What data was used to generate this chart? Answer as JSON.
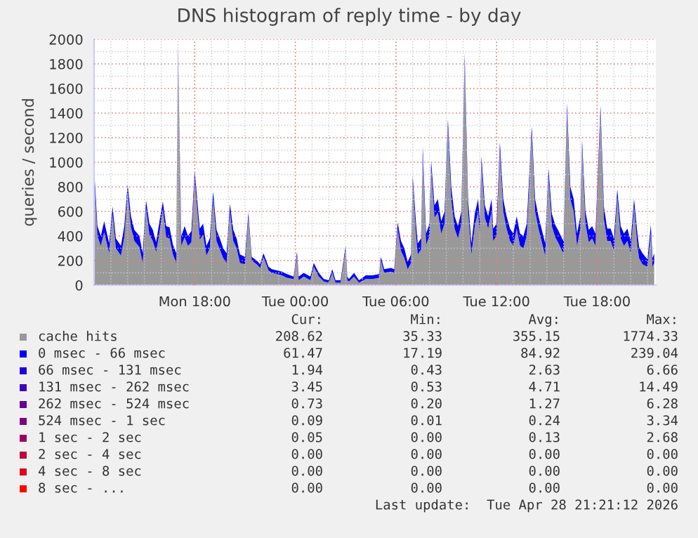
{
  "chart_data": {
    "type": "area",
    "stacked": true,
    "title": "DNS histogram of reply time - by day",
    "ylabel": "queries / second",
    "x": [
      "2026-04-27T12:00",
      "2026-04-27T12:12",
      "2026-04-27T12:24",
      "2026-04-27T12:36",
      "2026-04-27T12:54",
      "2026-04-27T13:06",
      "2026-04-27T13:18",
      "2026-04-27T13:36",
      "2026-04-27T13:48",
      "2026-04-27T14:00",
      "2026-04-27T14:12",
      "2026-04-27T14:24",
      "2026-04-27T14:42",
      "2026-04-27T14:54",
      "2026-04-27T15:06",
      "2026-04-27T15:18",
      "2026-04-27T15:30",
      "2026-04-27T15:42",
      "2026-04-27T15:54",
      "2026-04-27T16:06",
      "2026-04-27T16:18",
      "2026-04-27T16:30",
      "2026-04-27T16:42",
      "2026-04-27T16:54",
      "2026-04-27T17:00",
      "2026-04-27T17:12",
      "2026-04-27T17:24",
      "2026-04-27T17:36",
      "2026-04-27T17:48",
      "2026-04-27T18:00",
      "2026-04-27T18:18",
      "2026-04-27T18:30",
      "2026-04-27T18:42",
      "2026-04-27T18:54",
      "2026-04-27T19:06",
      "2026-04-27T19:18",
      "2026-04-27T19:30",
      "2026-04-27T19:42",
      "2026-04-27T19:54",
      "2026-04-27T20:06",
      "2026-04-27T20:18",
      "2026-04-27T20:30",
      "2026-04-27T20:42",
      "2026-04-27T21:00",
      "2026-04-27T21:12",
      "2026-04-27T21:24",
      "2026-04-27T21:42",
      "2026-04-27T21:54",
      "2026-04-27T22:06",
      "2026-04-27T22:24",
      "2026-04-27T22:36",
      "2026-04-27T22:54",
      "2026-04-27T23:12",
      "2026-04-27T23:30",
      "2026-04-27T23:54",
      "2026-04-28T00:06",
      "2026-04-28T00:12",
      "2026-04-28T00:30",
      "2026-04-28T00:54",
      "2026-04-28T01:06",
      "2026-04-28T01:24",
      "2026-04-28T01:42",
      "2026-04-28T02:00",
      "2026-04-28T02:12",
      "2026-04-28T02:24",
      "2026-04-28T02:42",
      "2026-04-28T03:00",
      "2026-04-28T03:06",
      "2026-04-28T03:12",
      "2026-04-28T03:30",
      "2026-04-28T03:48",
      "2026-04-28T04:12",
      "2026-04-28T04:36",
      "2026-04-28T05:00",
      "2026-04-28T05:06",
      "2026-04-28T05:18",
      "2026-04-28T05:42",
      "2026-04-28T05:54",
      "2026-04-28T06:06",
      "2026-04-28T06:18",
      "2026-04-28T06:30",
      "2026-04-28T06:42",
      "2026-04-28T06:54",
      "2026-04-28T07:00",
      "2026-04-28T07:12",
      "2026-04-28T07:18",
      "2026-04-28T07:30",
      "2026-04-28T07:36",
      "2026-04-28T07:48",
      "2026-04-28T08:00",
      "2026-04-28T08:06",
      "2026-04-28T08:18",
      "2026-04-28T08:30",
      "2026-04-28T08:42",
      "2026-04-28T08:54",
      "2026-04-28T09:06",
      "2026-04-28T09:18",
      "2026-04-28T09:30",
      "2026-04-28T09:42",
      "2026-04-28T09:54",
      "2026-04-28T10:06",
      "2026-04-28T10:18",
      "2026-04-28T10:30",
      "2026-04-28T10:42",
      "2026-04-28T10:54",
      "2026-04-28T11:00",
      "2026-04-28T11:06",
      "2026-04-28T11:18",
      "2026-04-28T11:30",
      "2026-04-28T11:42",
      "2026-04-28T11:48",
      "2026-04-28T12:00",
      "2026-04-28T12:12",
      "2026-04-28T12:24",
      "2026-04-28T12:36",
      "2026-04-28T12:48",
      "2026-04-28T13:00",
      "2026-04-28T13:12",
      "2026-04-28T13:24",
      "2026-04-28T13:36",
      "2026-04-28T13:48",
      "2026-04-28T14:06",
      "2026-04-28T14:18",
      "2026-04-28T14:30",
      "2026-04-28T14:42",
      "2026-04-28T14:54",
      "2026-04-28T15:06",
      "2026-04-28T15:18",
      "2026-04-28T15:30",
      "2026-04-28T15:42",
      "2026-04-28T15:54",
      "2026-04-28T16:00",
      "2026-04-28T16:12",
      "2026-04-28T16:24",
      "2026-04-28T16:36",
      "2026-04-28T16:48",
      "2026-04-28T17:00",
      "2026-04-28T17:06",
      "2026-04-28T17:18",
      "2026-04-28T17:30",
      "2026-04-28T17:42",
      "2026-04-28T17:54",
      "2026-04-28T18:12",
      "2026-04-28T18:24",
      "2026-04-28T18:36",
      "2026-04-28T18:48",
      "2026-04-28T19:00",
      "2026-04-28T19:12",
      "2026-04-28T19:24",
      "2026-04-28T19:36",
      "2026-04-28T19:48",
      "2026-04-28T20:00",
      "2026-04-28T20:12",
      "2026-04-28T20:24",
      "2026-04-28T20:30",
      "2026-04-28T20:42",
      "2026-04-28T21:00",
      "2026-04-28T21:12",
      "2026-04-28T21:18",
      "2026-04-28T21:24"
    ],
    "series": [
      {
        "name": "cache hits",
        "color": "#999999",
        "values": [
          890,
          400,
          320,
          430,
          260,
          580,
          300,
          240,
          390,
          760,
          470,
          360,
          310,
          180,
          630,
          410,
          360,
          270,
          430,
          620,
          390,
          380,
          250,
          180,
          1880,
          320,
          390,
          320,
          350,
          870,
          370,
          410,
          240,
          300,
          700,
          360,
          290,
          220,
          180,
          600,
          360,
          300,
          180,
          170,
          550,
          200,
          170,
          140,
          230,
          120,
          100,
          90,
          80,
          60,
          50,
          240,
          40,
          70,
          40,
          150,
          70,
          30,
          20,
          100,
          20,
          20,
          290,
          40,
          30,
          70,
          20,
          50,
          50,
          60,
          200,
          100,
          110,
          100,
          460,
          280,
          220,
          130,
          180,
          830,
          410,
          250,
          290,
          1060,
          330,
          400,
          950,
          550,
          590,
          420,
          500,
          1290,
          700,
          460,
          380,
          500,
          1820,
          600,
          250,
          480,
          600,
          420,
          990,
          550,
          460,
          600,
          360,
          400,
          1100,
          600,
          460,
          360,
          320,
          460,
          320,
          300,
          400,
          1230,
          600,
          460,
          350,
          240,
          890,
          480,
          390,
          340,
          280,
          260,
          1420,
          700,
          600,
          320,
          460,
          1120,
          500,
          350,
          380,
          320,
          1400,
          540,
          360,
          360,
          280,
          720,
          380,
          320,
          360,
          260,
          640,
          320,
          220,
          170,
          150,
          420,
          150,
          180
        ]
      },
      {
        "name": "0 msec - 66 msec",
        "color": "#0000ff",
        "values": [
          60,
          80,
          80,
          90,
          80,
          60,
          80,
          80,
          90,
          60,
          90,
          90,
          90,
          80,
          60,
          90,
          90,
          80,
          90,
          60,
          90,
          90,
          80,
          80,
          60,
          80,
          90,
          80,
          90,
          60,
          90,
          90,
          80,
          80,
          60,
          90,
          90,
          80,
          80,
          60,
          90,
          80,
          70,
          60,
          40,
          30,
          30,
          30,
          30,
          30,
          30,
          30,
          30,
          30,
          20,
          30,
          30,
          30,
          30,
          30,
          30,
          20,
          20,
          30,
          20,
          20,
          30,
          30,
          20,
          30,
          20,
          30,
          30,
          30,
          30,
          30,
          30,
          30,
          50,
          80,
          80,
          60,
          70,
          60,
          90,
          90,
          90,
          60,
          90,
          100,
          60,
          100,
          110,
          100,
          100,
          60,
          100,
          100,
          100,
          100,
          60,
          100,
          90,
          100,
          100,
          100,
          60,
          100,
          100,
          100,
          100,
          100,
          60,
          100,
          100,
          100,
          100,
          100,
          100,
          100,
          100,
          60,
          100,
          100,
          100,
          100,
          60,
          100,
          100,
          100,
          100,
          100,
          60,
          100,
          100,
          100,
          100,
          60,
          100,
          100,
          100,
          100,
          60,
          100,
          100,
          100,
          100,
          60,
          100,
          100,
          100,
          100,
          60,
          100,
          90,
          90,
          60,
          70,
          70,
          80
        ]
      },
      {
        "name": "66 msec - 131 msec",
        "color": "#2000e0",
        "values": [
          null,
          null,
          null,
          null,
          null,
          null,
          null,
          null,
          null,
          null,
          null,
          null,
          null,
          null,
          null,
          null,
          null,
          null,
          null,
          null,
          null,
          null,
          null,
          null,
          null,
          null,
          null,
          null,
          null,
          null,
          null,
          null,
          null,
          null,
          null,
          null,
          null,
          null,
          null,
          null,
          null,
          null,
          null,
          null,
          null,
          null,
          null,
          null,
          null,
          null,
          null,
          null,
          null,
          null,
          null,
          null,
          null,
          null,
          null,
          null,
          null,
          null,
          null,
          null,
          null,
          null,
          null,
          null,
          null,
          null,
          null,
          null,
          null,
          null,
          null,
          null,
          null,
          null,
          null,
          null,
          null,
          null,
          null,
          null,
          null,
          null,
          null,
          null,
          null,
          null,
          null,
          null,
          null,
          null,
          null,
          null,
          null,
          null,
          null,
          null,
          null,
          null,
          null,
          null,
          null,
          null,
          null,
          null,
          null,
          null,
          null,
          null,
          null,
          null,
          null,
          null,
          null,
          null,
          null,
          null,
          null,
          null,
          null,
          null,
          null,
          null,
          null,
          null,
          null,
          null,
          null,
          null,
          null,
          null,
          null,
          null,
          null,
          null,
          null,
          null,
          null,
          null,
          null,
          null,
          null,
          null,
          null,
          null,
          null,
          null,
          null,
          null,
          null,
          null,
          null,
          null,
          null,
          null,
          null,
          null
        ]
      },
      {
        "name": "131 msec - 262 msec",
        "color": "#4000c0",
        "values": [
          null,
          null,
          null,
          null,
          null,
          null,
          null,
          null,
          null,
          null,
          null,
          null,
          null,
          null,
          null,
          null,
          null,
          null,
          null,
          null,
          null,
          null,
          null,
          null,
          null,
          null,
          null,
          null,
          null,
          null,
          null,
          null,
          null,
          null,
          null,
          null,
          null,
          null,
          null,
          null,
          null,
          null,
          null,
          null,
          null,
          null,
          null,
          null,
          null,
          null,
          null,
          null,
          null,
          null,
          null,
          null,
          null,
          null,
          null,
          null,
          null,
          null,
          null,
          null,
          null,
          null,
          null,
          null,
          null,
          null,
          null,
          null,
          null,
          null,
          null,
          null,
          null,
          null,
          null,
          null,
          null,
          null,
          null,
          null,
          null,
          null,
          null,
          null,
          null,
          null,
          null,
          null,
          null,
          null,
          null,
          null,
          null,
          null,
          null,
          null,
          null,
          null,
          null,
          null,
          null,
          null,
          null,
          null,
          null,
          null,
          null,
          null,
          null,
          null,
          null,
          null,
          null,
          null,
          null,
          null,
          null,
          null,
          null,
          null,
          null,
          null,
          null,
          null,
          null,
          null,
          null,
          null,
          null,
          null,
          null,
          null,
          null,
          null,
          null,
          null,
          null,
          null,
          null,
          null,
          null,
          null,
          null,
          null,
          null,
          null,
          null,
          null,
          null,
          null,
          null,
          null,
          null,
          null,
          null,
          null
        ]
      },
      {
        "name": "262 msec - 524 msec",
        "color": "#6000a0",
        "values": [
          null,
          null,
          null,
          null,
          null,
          null,
          null,
          null,
          null,
          null,
          null,
          null,
          null,
          null,
          null,
          null,
          null,
          null,
          null,
          null,
          null,
          null,
          null,
          null,
          null,
          null,
          null,
          null,
          null,
          null,
          null,
          null,
          null,
          null,
          null,
          null,
          null,
          null,
          null,
          null,
          null,
          null,
          null,
          null,
          null,
          null,
          null,
          null,
          null,
          null,
          null,
          null,
          null,
          null,
          null,
          null,
          null,
          null,
          null,
          null,
          null,
          null,
          null,
          null,
          null,
          null,
          null,
          null,
          null,
          null,
          null,
          null,
          null,
          null,
          null,
          null,
          null,
          null,
          null,
          null,
          null,
          null,
          null,
          null,
          null,
          null,
          null,
          null,
          null,
          null,
          null,
          null,
          null,
          null,
          null,
          null,
          null,
          null,
          null,
          null,
          null,
          null,
          null,
          null,
          null,
          null,
          null,
          null,
          null,
          null,
          null,
          null,
          null,
          null,
          null,
          null,
          null,
          null,
          null,
          null,
          null,
          null,
          null,
          null,
          null,
          null,
          null,
          null,
          null,
          null,
          null,
          null,
          null,
          null,
          null,
          null,
          null,
          null,
          null,
          null,
          null,
          null,
          null,
          null,
          null,
          null,
          null,
          null,
          null,
          null,
          null,
          null,
          null,
          null,
          null,
          null,
          null,
          null,
          null,
          null
        ]
      },
      {
        "name": "524 msec - 1 sec",
        "color": "#800080",
        "values": [
          null,
          null,
          null,
          null,
          null,
          null,
          null,
          null,
          null,
          null,
          null,
          null,
          null,
          null,
          null,
          null,
          null,
          null,
          null,
          null,
          null,
          null,
          null,
          null,
          null,
          null,
          null,
          null,
          null,
          null,
          null,
          null,
          null,
          null,
          null,
          null,
          null,
          null,
          null,
          null,
          null,
          null,
          null,
          null,
          null,
          null,
          null,
          null,
          null,
          null,
          null,
          null,
          null,
          null,
          null,
          null,
          null,
          null,
          null,
          null,
          null,
          null,
          null,
          null,
          null,
          null,
          null,
          null,
          null,
          null,
          null,
          null,
          null,
          null,
          null,
          null,
          null,
          null,
          null,
          null,
          null,
          null,
          null,
          null,
          null,
          null,
          null,
          null,
          null,
          null,
          null,
          null,
          null,
          null,
          null,
          null,
          null,
          null,
          null,
          null,
          null,
          null,
          null,
          null,
          null,
          null,
          null,
          null,
          null,
          null,
          null,
          null,
          null,
          null,
          null,
          null,
          null,
          null,
          null,
          null,
          null,
          null,
          null,
          null,
          null,
          null,
          null,
          null,
          null,
          null,
          null,
          null,
          null,
          null,
          null,
          null,
          null,
          null,
          null,
          null,
          null,
          null,
          null,
          null,
          null,
          null,
          null,
          null,
          null,
          null,
          null,
          null,
          null,
          null,
          null,
          null,
          null,
          null,
          null,
          null
        ]
      },
      {
        "name": "1 sec - 2 sec",
        "color": "#a00060",
        "values": [
          null,
          null,
          null,
          null,
          null,
          null,
          null,
          null,
          null,
          null,
          null,
          null,
          null,
          null,
          null,
          null,
          null,
          null,
          null,
          null,
          null,
          null,
          null,
          null,
          null,
          null,
          null,
          null,
          null,
          null,
          null,
          null,
          null,
          null,
          null,
          null,
          null,
          null,
          null,
          null,
          null,
          null,
          null,
          null,
          null,
          null,
          null,
          null,
          null,
          null,
          null,
          null,
          null,
          null,
          null,
          null,
          null,
          null,
          null,
          null,
          null,
          null,
          null,
          null,
          null,
          null,
          null,
          null,
          null,
          null,
          null,
          null,
          null,
          null,
          null,
          null,
          null,
          null,
          null,
          null,
          null,
          null,
          null,
          null,
          null,
          null,
          null,
          null,
          null,
          null,
          null,
          null,
          null,
          null,
          null,
          null,
          null,
          null,
          null,
          null,
          null,
          null,
          null,
          null,
          null,
          null,
          null,
          null,
          null,
          null,
          null,
          null,
          null,
          null,
          null,
          null,
          null,
          null,
          null,
          null,
          null,
          null,
          null,
          null,
          null,
          null,
          null,
          null,
          null,
          null,
          null,
          null,
          null,
          null,
          null,
          null,
          null,
          null,
          null,
          null,
          null,
          null,
          null,
          null,
          null,
          null,
          null,
          null,
          null,
          null,
          null,
          null,
          null,
          null,
          null,
          null,
          null,
          null,
          null,
          null
        ]
      },
      {
        "name": "2 sec - 4 sec",
        "color": "#c00040",
        "values": [
          null,
          null,
          null,
          null,
          null,
          null,
          null,
          null,
          null,
          null,
          null,
          null,
          null,
          null,
          null,
          null,
          null,
          null,
          null,
          null,
          null,
          null,
          null,
          null,
          null,
          null,
          null,
          null,
          null,
          null,
          null,
          null,
          null,
          null,
          null,
          null,
          null,
          null,
          null,
          null,
          null,
          null,
          null,
          null,
          null,
          null,
          null,
          null,
          null,
          null,
          null,
          null,
          null,
          null,
          null,
          null,
          null,
          null,
          null,
          null,
          null,
          null,
          null,
          null,
          null,
          null,
          null,
          null,
          null,
          null,
          null,
          null,
          null,
          null,
          null,
          null,
          null,
          null,
          null,
          null,
          null,
          null,
          null,
          null,
          null,
          null,
          null,
          null,
          null,
          null,
          null,
          null,
          null,
          null,
          null,
          null,
          null,
          null,
          null,
          null,
          null,
          null,
          null,
          null,
          null,
          null,
          null,
          null,
          null,
          null,
          null,
          null,
          null,
          null,
          null,
          null,
          null,
          null,
          null,
          null,
          null,
          null,
          null,
          null,
          null,
          null,
          null,
          null,
          null,
          null,
          null,
          null,
          null,
          null,
          null,
          null,
          null,
          null,
          null,
          null,
          null,
          null,
          null,
          null,
          null,
          null,
          null,
          null,
          null,
          null,
          null,
          null,
          null,
          null,
          null,
          null,
          null,
          null,
          null,
          null
        ]
      },
      {
        "name": "4 sec - 8 sec",
        "color": "#e00020",
        "values": [
          null,
          null,
          null,
          null,
          null,
          null,
          null,
          null,
          null,
          null,
          null,
          null,
          null,
          null,
          null,
          null,
          null,
          null,
          null,
          null,
          null,
          null,
          null,
          null,
          null,
          null,
          null,
          null,
          null,
          null,
          null,
          null,
          null,
          null,
          null,
          null,
          null,
          null,
          null,
          null,
          null,
          null,
          null,
          null,
          null,
          null,
          null,
          null,
          null,
          null,
          null,
          null,
          null,
          null,
          null,
          null,
          null,
          null,
          null,
          null,
          null,
          null,
          null,
          null,
          null,
          null,
          null,
          null,
          null,
          null,
          null,
          null,
          null,
          null,
          null,
          null,
          null,
          null,
          null,
          null,
          null,
          null,
          null,
          null,
          null,
          null,
          null,
          null,
          null,
          null,
          null,
          null,
          null,
          null,
          null,
          null,
          null,
          null,
          null,
          null,
          null,
          null,
          null,
          null,
          null,
          null,
          null,
          null,
          null,
          null,
          null,
          null,
          null,
          null,
          null,
          null,
          null,
          null,
          null,
          null,
          null,
          null,
          null,
          null,
          null,
          null,
          null,
          null,
          null,
          null,
          null,
          null,
          null,
          null,
          null,
          null,
          null,
          null,
          null,
          null,
          null,
          null,
          null,
          null,
          null,
          null,
          null,
          null,
          null,
          null,
          null,
          null,
          null,
          null,
          null,
          null,
          null,
          null,
          null,
          null
        ]
      },
      {
        "name": "8 sec - ...",
        "color": "#ff0000",
        "values": [
          null,
          null,
          null,
          null,
          null,
          null,
          null,
          null,
          null,
          null,
          null,
          null,
          null,
          null,
          null,
          null,
          null,
          null,
          null,
          null,
          null,
          null,
          null,
          null,
          null,
          null,
          null,
          null,
          null,
          null,
          null,
          null,
          null,
          null,
          null,
          null,
          null,
          null,
          null,
          null,
          null,
          null,
          null,
          null,
          null,
          null,
          null,
          null,
          null,
          null,
          null,
          null,
          null,
          null,
          null,
          null,
          null,
          null,
          null,
          null,
          null,
          null,
          null,
          null,
          null,
          null,
          null,
          null,
          null,
          null,
          null,
          null,
          null,
          null,
          null,
          null,
          null,
          null,
          null,
          null,
          null,
          null,
          null,
          null,
          null,
          null,
          null,
          null,
          null,
          null,
          null,
          null,
          null,
          null,
          null,
          null,
          null,
          null,
          null,
          null,
          null,
          null,
          null,
          null,
          null,
          null,
          null,
          null,
          null,
          null,
          null,
          null,
          null,
          null,
          null,
          null,
          null,
          null,
          null,
          null,
          null,
          null,
          null,
          null,
          null,
          null,
          null,
          null,
          null,
          null,
          null,
          null,
          null,
          null,
          null,
          null,
          null,
          null,
          null,
          null,
          null,
          null,
          null,
          null,
          null,
          null,
          null,
          null,
          null,
          null,
          null,
          null,
          null,
          null,
          null,
          null,
          null,
          null,
          null,
          null
        ]
      }
    ],
    "xlim": [
      "2026-04-27T12:00",
      "2026-04-28T21:30"
    ],
    "xticks": [
      {
        "value": "2026-04-27T18:00",
        "label": "Mon 18:00"
      },
      {
        "value": "2026-04-28T00:00",
        "label": "Tue 00:00"
      },
      {
        "value": "2026-04-28T06:00",
        "label": "Tue 06:00"
      },
      {
        "value": "2026-04-28T12:00",
        "label": "Tue 12:00"
      },
      {
        "value": "2026-04-28T18:00",
        "label": "Tue 18:00"
      }
    ],
    "ylim": [
      0,
      2000
    ],
    "yticks": [
      0,
      200,
      400,
      600,
      800,
      1000,
      1200,
      1400,
      1600,
      1800,
      2000
    ],
    "grid": true,
    "legend": "bottom",
    "annotations": [
      "Cur:",
      "Min:",
      "Avg:",
      "Max:",
      "208.62",
      "35.33",
      "355.15",
      "1774.33",
      "61.47",
      "17.19",
      "84.92",
      "239.04",
      "1.94",
      "0.43",
      "2.63",
      "6.66",
      "3.45",
      "0.53",
      "4.71",
      "14.49",
      "0.73",
      "0.20",
      "1.27",
      "6.28",
      "0.09",
      "0.01",
      "0.24",
      "3.34",
      "0.05",
      "0.00",
      "0.13",
      "2.68",
      "0.00",
      "0.00",
      "0.00",
      "0.00",
      "0.00",
      "0.00",
      "0.00",
      "0.00",
      "0.00",
      "0.00",
      "0.00",
      "0.00",
      "Last update:  Tue Apr 28 21:21:12 2026"
    ]
  }
}
